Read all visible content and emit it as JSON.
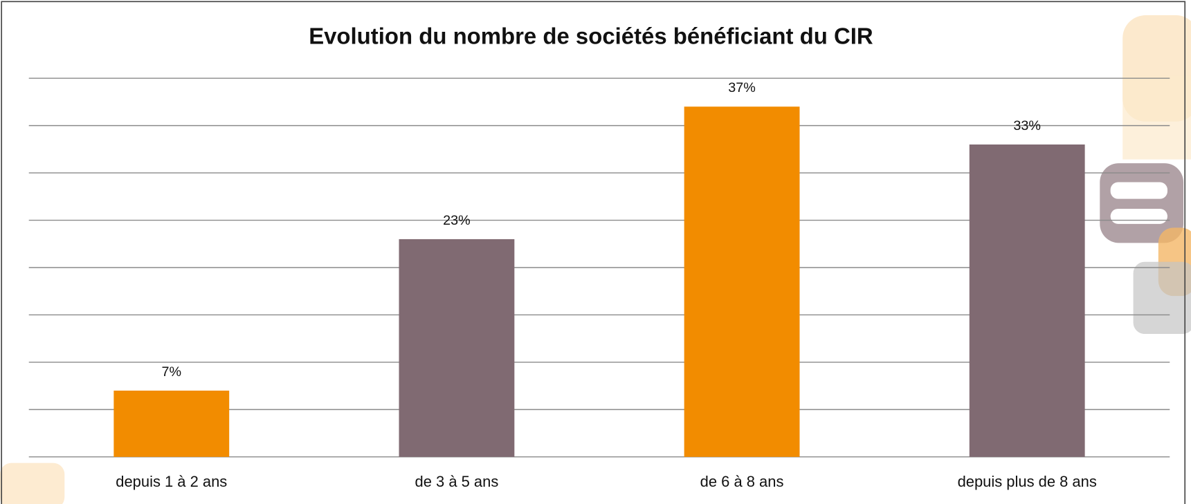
{
  "chart_data": {
    "type": "bar",
    "title": "Evolution du nombre de sociétés bénéficiant du CIR",
    "categories": [
      "depuis 1 à 2 ans",
      "de 3 à 5 ans",
      "de 6 à 8 ans",
      "depuis plus de 8 ans"
    ],
    "values": [
      7,
      23,
      37,
      33
    ],
    "value_labels": [
      "7%",
      "23%",
      "37%",
      "33%"
    ],
    "colors": [
      "#f28c00",
      "#806a72",
      "#f28c00",
      "#806a72"
    ],
    "ylim": [
      0,
      40
    ],
    "yticks": [
      0,
      5,
      10,
      15,
      20,
      25,
      30,
      35,
      40
    ],
    "grid": true
  }
}
